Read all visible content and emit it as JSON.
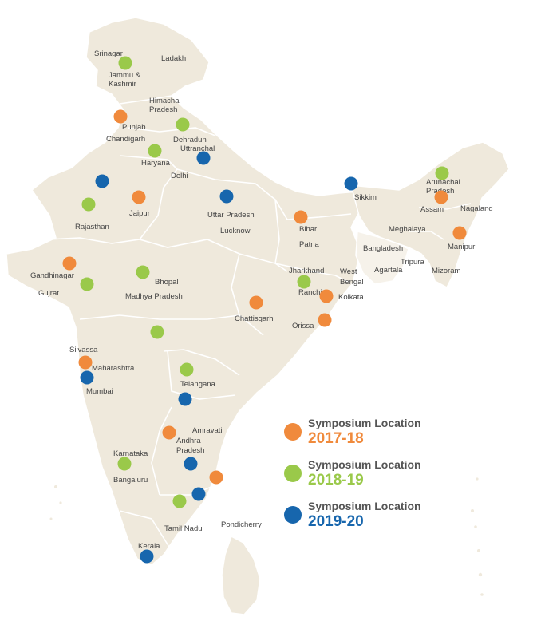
{
  "colors": {
    "y2017": "#f08a3c",
    "y2018": "#9ac94a",
    "y2019": "#1766ad",
    "land": "#efe9dc",
    "border": "#ffffff",
    "text": "#444444"
  },
  "legend": [
    {
      "title": "Symposium Location",
      "year": "2017-18",
      "color": "#f08a3c"
    },
    {
      "title": "Symposium Location",
      "year": "2018-19",
      "color": "#9ac94a"
    },
    {
      "title": "Symposium Location",
      "year": "2019-20",
      "color": "#1766ad"
    }
  ],
  "region_labels": [
    "Srinagar",
    "Jammu &",
    "Kashmir",
    "Ladakh",
    "Himachal",
    "Pradesh",
    "Punjab",
    "Chandigarh",
    "Dehradun",
    "Uttranchal",
    "Haryana",
    "Delhi",
    "Sikkim",
    "Arunachal",
    "Pradesh",
    "Jaipur",
    "Rajasthan",
    "Uttar Pradesh",
    "Lucknow",
    "Bihar",
    "Patna",
    "Assam",
    "Nagaland",
    "Meghalaya",
    "Manipur",
    "Bangladesh",
    "Tripura",
    "Agartala",
    "Mizoram",
    "Gandhinagar",
    "Gujrat",
    "Bhopal",
    "Madhya Pradesh",
    "Jharkhand",
    "Ranchi",
    "West",
    "Bengal",
    "Kolkata",
    "Chattisgarh",
    "Orissa",
    "Silvassa",
    "Maharashtra",
    "Mumbai",
    "Telangana",
    "Amravati",
    "Andhra",
    "Pradesh",
    "Karnataka",
    "Bangaluru",
    "Tamil Nadu",
    "Pondicherry",
    "Kerala"
  ],
  "markers": [
    {
      "label": "Srinagar",
      "year": "2018-19"
    },
    {
      "label": "Punjab",
      "year": "2017-18"
    },
    {
      "label": "Dehradun",
      "year": "2018-19"
    },
    {
      "label": "Haryana",
      "year": "2018-19"
    },
    {
      "label": "Uttranchal",
      "year": "2019-20"
    },
    {
      "label": "Rajasthan north",
      "year": "2019-20"
    },
    {
      "label": "Jaipur",
      "year": "2017-18"
    },
    {
      "label": "Rajasthan",
      "year": "2018-19"
    },
    {
      "label": "Uttar Pradesh",
      "year": "2019-20"
    },
    {
      "label": "Sikkim",
      "year": "2019-20"
    },
    {
      "label": "Arunachal Pradesh",
      "year": "2018-19"
    },
    {
      "label": "Assam",
      "year": "2017-18"
    },
    {
      "label": "Bihar",
      "year": "2017-18"
    },
    {
      "label": "Manipur",
      "year": "2017-18"
    },
    {
      "label": "Gandhinagar",
      "year": "2017-18"
    },
    {
      "label": "Gujrat",
      "year": "2018-19"
    },
    {
      "label": "Bhopal",
      "year": "2018-19"
    },
    {
      "label": "Ranchi",
      "year": "2018-19"
    },
    {
      "label": "Kolkata",
      "year": "2017-18"
    },
    {
      "label": "Chattisgarh",
      "year": "2017-18"
    },
    {
      "label": "Orissa",
      "year": "2017-18"
    },
    {
      "label": "Maharashtra",
      "year": "2018-19"
    },
    {
      "label": "Silvassa",
      "year": "2017-18"
    },
    {
      "label": "Mumbai",
      "year": "2019-20"
    },
    {
      "label": "Telangana",
      "year": "2018-19"
    },
    {
      "label": "Telangana south",
      "year": "2019-20"
    },
    {
      "label": "Amravati",
      "year": "2017-18"
    },
    {
      "label": "Andhra Pradesh",
      "year": "2019-20"
    },
    {
      "label": "Bangaluru",
      "year": "2018-19"
    },
    {
      "label": "Chennai",
      "year": "2017-18"
    },
    {
      "label": "Tamil Nadu north",
      "year": "2018-19"
    },
    {
      "label": "Tamil Nadu",
      "year": "2019-20"
    },
    {
      "label": "Kerala",
      "year": "2019-20"
    }
  ]
}
